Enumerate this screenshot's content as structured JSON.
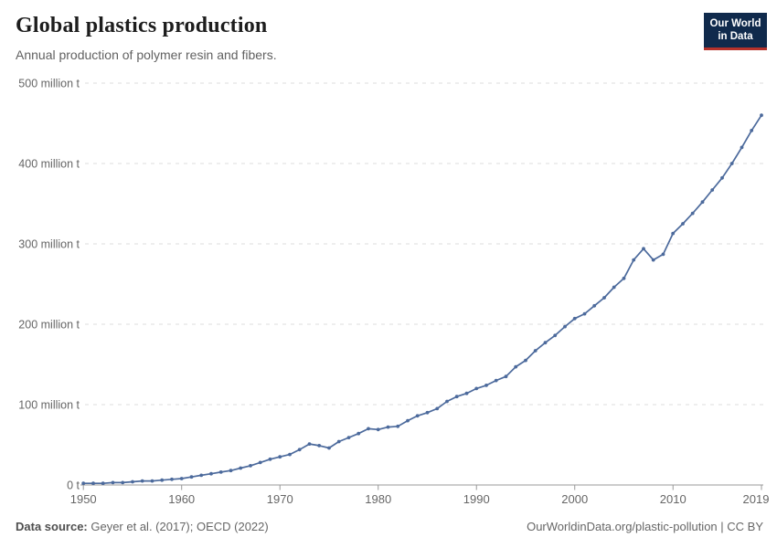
{
  "header": {
    "title": "Global plastics production",
    "subtitle": "Annual production of polymer resin and fibers."
  },
  "logo": {
    "line1": "Our World",
    "line2": "in Data",
    "bg_color": "#102a4c",
    "accent_color": "#b6322b"
  },
  "chart_data": {
    "type": "line",
    "title": "Global plastics production",
    "ylabel": "",
    "xlabel": "",
    "unit": "million tonnes",
    "series_name": "World plastics production",
    "line_color": "#4c6a9c",
    "grid": "horizontal dashed",
    "legend_position": "none",
    "ylim": [
      0,
      500
    ],
    "xlim": [
      1950,
      2019
    ],
    "yticks": [
      {
        "value": 0,
        "label": "0 t"
      },
      {
        "value": 100,
        "label": "100 million t"
      },
      {
        "value": 200,
        "label": "200 million t"
      },
      {
        "value": 300,
        "label": "300 million t"
      },
      {
        "value": 400,
        "label": "400 million t"
      },
      {
        "value": 500,
        "label": "500 million t"
      }
    ],
    "xticks": [
      1950,
      1960,
      1970,
      1980,
      1990,
      2000,
      2010,
      2019
    ],
    "x": [
      1950,
      1951,
      1952,
      1953,
      1954,
      1955,
      1956,
      1957,
      1958,
      1959,
      1960,
      1961,
      1962,
      1963,
      1964,
      1965,
      1966,
      1967,
      1968,
      1969,
      1970,
      1971,
      1972,
      1973,
      1974,
      1975,
      1976,
      1977,
      1978,
      1979,
      1980,
      1981,
      1982,
      1983,
      1984,
      1985,
      1986,
      1987,
      1988,
      1989,
      1990,
      1991,
      1992,
      1993,
      1994,
      1995,
      1996,
      1997,
      1998,
      1999,
      2000,
      2001,
      2002,
      2003,
      2004,
      2005,
      2006,
      2007,
      2008,
      2009,
      2010,
      2011,
      2012,
      2013,
      2014,
      2015,
      2016,
      2017,
      2018,
      2019
    ],
    "values": [
      2,
      2,
      2,
      3,
      3,
      4,
      5,
      5,
      6,
      7,
      8,
      10,
      12,
      14,
      16,
      18,
      21,
      24,
      28,
      32,
      35,
      38,
      44,
      51,
      49,
      46,
      54,
      59,
      64,
      70,
      69,
      72,
      73,
      80,
      86,
      90,
      95,
      104,
      110,
      114,
      120,
      124,
      130,
      135,
      147,
      155,
      167,
      177,
      186,
      197,
      207,
      213,
      223,
      233,
      246,
      257,
      280,
      294,
      280,
      287,
      313,
      325,
      338,
      352,
      367,
      382,
      400,
      420,
      441,
      460
    ]
  },
  "footer": {
    "datasource_label": "Data source:",
    "datasource_value": " Geyer et al. (2017); OECD (2022)",
    "link": "OurWorldinData.org/plastic-pollution | CC BY"
  },
  "style_colors": {
    "gridline": "#dcdcdc",
    "axis": "#999999",
    "tick_label": "#666666"
  }
}
